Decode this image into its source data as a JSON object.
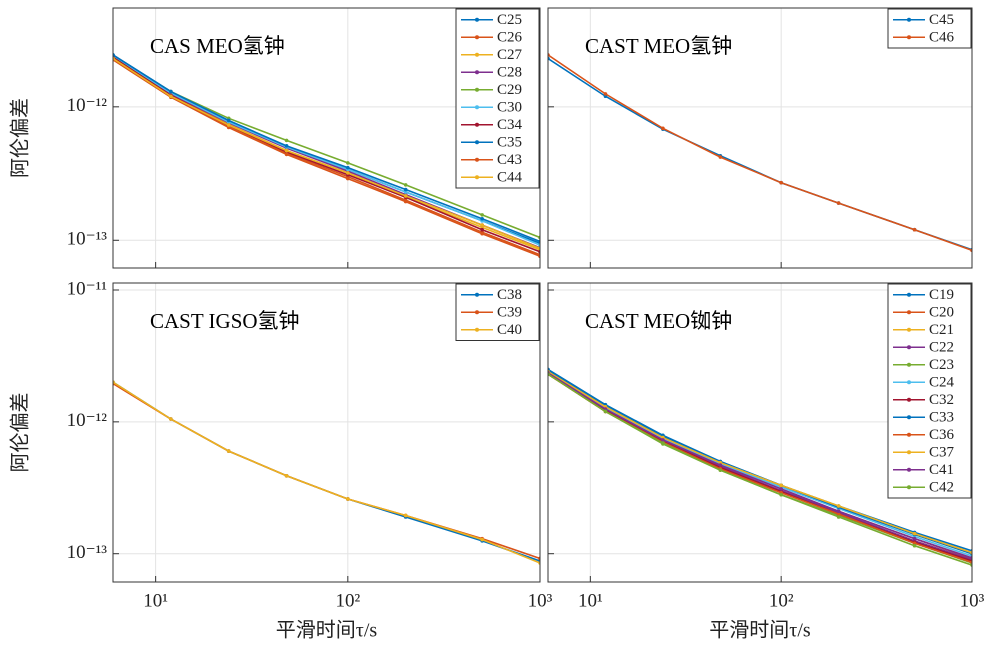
{
  "chart_data": [
    {
      "type": "line",
      "title": "CAS MEO氢钟",
      "ylabel": "阿伦偏差",
      "log_x": true,
      "log_y": true,
      "grid": true,
      "legend": "upper right",
      "xlim": [
        6,
        1000
      ],
      "ylim": [
        6.2e-14,
        5.5e-12
      ],
      "xticks": [
        10,
        100,
        1000
      ],
      "yticks": [
        {
          "value": 1e-12,
          "label": "10⁻¹²"
        },
        {
          "value": 1e-13,
          "label": "10⁻¹³"
        }
      ],
      "x": [
        6,
        12,
        24,
        48,
        100,
        200,
        500,
        1000
      ],
      "series": [
        {
          "name": "C25",
          "color": "#0072BD",
          "values": [
            2.45e-12,
            1.3e-12,
            7.8e-13,
            5e-13,
            3.4e-13,
            2.3e-13,
            1.4e-13,
            9.5e-14
          ]
        },
        {
          "name": "C26",
          "color": "#D95319",
          "values": [
            2.3e-12,
            1.2e-12,
            7.2e-13,
            4.5e-13,
            3e-13,
            2e-13,
            1.15e-13,
            7.8e-14
          ]
        },
        {
          "name": "C27",
          "color": "#EDB120",
          "values": [
            2.35e-12,
            1.22e-12,
            7.4e-13,
            4.7e-13,
            3.2e-13,
            2.1e-13,
            1.25e-13,
            8.5e-14
          ]
        },
        {
          "name": "C28",
          "color": "#7E2F8E",
          "values": [
            2.4e-12,
            1.25e-12,
            7.6e-13,
            4.9e-13,
            3.3e-13,
            2.2e-13,
            1.3e-13,
            8.8e-14
          ]
        },
        {
          "name": "C29",
          "color": "#77AC30",
          "values": [
            2.4e-12,
            1.3e-12,
            8.2e-13,
            5.6e-13,
            3.8e-13,
            2.6e-13,
            1.55e-13,
            1.05e-13
          ]
        },
        {
          "name": "C30",
          "color": "#4DBEEE",
          "values": [
            2.4e-12,
            1.27e-12,
            7.7e-13,
            5e-13,
            3.4e-13,
            2.3e-13,
            1.4e-13,
            9.2e-14
          ]
        },
        {
          "name": "C34",
          "color": "#A2142F",
          "values": [
            2.35e-12,
            1.22e-12,
            7.3e-13,
            4.6e-13,
            3.1e-13,
            2.1e-13,
            1.2e-13,
            8.2e-14
          ]
        },
        {
          "name": "C35",
          "color": "#0072BD",
          "values": [
            2.45e-12,
            1.3e-12,
            7.9e-13,
            5.1e-13,
            3.5e-13,
            2.4e-13,
            1.45e-13,
            9.8e-14
          ]
        },
        {
          "name": "C43",
          "color": "#D95319",
          "values": [
            2.25e-12,
            1.18e-12,
            7e-13,
            4.4e-13,
            2.9e-13,
            1.95e-13,
            1.12e-13,
            7.6e-14
          ]
        },
        {
          "name": "C44",
          "color": "#EDB120",
          "values": [
            2.3e-12,
            1.2e-12,
            7.3e-13,
            4.7e-13,
            3.2e-13,
            2.15e-13,
            1.3e-13,
            8.7e-14
          ]
        }
      ]
    },
    {
      "type": "line",
      "title": "CAST MEO氢钟",
      "log_x": true,
      "log_y": true,
      "grid": true,
      "legend": "upper right",
      "xlim": [
        6,
        1000
      ],
      "ylim": [
        6.2e-14,
        5.5e-12
      ],
      "xticks": [
        10,
        100,
        1000
      ],
      "yticks": [
        1e-12,
        1e-13
      ],
      "x": [
        6,
        12,
        24,
        48,
        100,
        200,
        500,
        1000
      ],
      "series": [
        {
          "name": "C45",
          "color": "#0072BD",
          "values": [
            2.3e-12,
            1.2e-12,
            6.8e-13,
            4.3e-13,
            2.7e-13,
            1.9e-13,
            1.2e-13,
            8.5e-14
          ]
        },
        {
          "name": "C46",
          "color": "#D95319",
          "values": [
            2.45e-12,
            1.25e-12,
            6.9e-13,
            4.2e-13,
            2.7e-13,
            1.9e-13,
            1.2e-13,
            8.4e-14
          ]
        }
      ]
    },
    {
      "type": "line",
      "title": "CAST IGSO氢钟",
      "ylabel": "阿伦偏差",
      "xlabel": "平滑时间τ/s",
      "log_x": true,
      "log_y": true,
      "grid": true,
      "legend": "upper right",
      "xlim": [
        6,
        1000
      ],
      "ylim": [
        6.1e-14,
        1.13e-11
      ],
      "xticks": [
        {
          "value": 10,
          "label": "10¹"
        },
        {
          "value": 100,
          "label": "10²"
        },
        {
          "value": 1000,
          "label": "10³"
        }
      ],
      "yticks": [
        {
          "value": 1e-11,
          "label": "10⁻¹¹"
        },
        {
          "value": 1e-12,
          "label": "10⁻¹²"
        },
        {
          "value": 1e-13,
          "label": "10⁻¹³"
        }
      ],
      "x": [
        6,
        12,
        24,
        48,
        100,
        200,
        500,
        1000
      ],
      "series": [
        {
          "name": "C38",
          "color": "#0072BD",
          "values": [
            2e-12,
            1.05e-12,
            6e-13,
            3.9e-13,
            2.6e-13,
            1.9e-13,
            1.25e-13,
            8.8e-14
          ]
        },
        {
          "name": "C39",
          "color": "#D95319",
          "values": [
            1.95e-12,
            1.05e-12,
            6e-13,
            3.9e-13,
            2.6e-13,
            1.95e-13,
            1.3e-13,
            9.2e-14
          ]
        },
        {
          "name": "C40",
          "color": "#EDB120",
          "values": [
            2e-12,
            1.05e-12,
            6e-13,
            3.9e-13,
            2.6e-13,
            1.95e-13,
            1.28e-13,
            8.5e-14
          ]
        }
      ]
    },
    {
      "type": "line",
      "title": "CAST MEO铷钟",
      "xlabel": "平滑时间τ/s",
      "log_x": true,
      "log_y": true,
      "grid": true,
      "legend": "upper right",
      "xlim": [
        6,
        1000
      ],
      "ylim": [
        6.1e-14,
        1.13e-11
      ],
      "xticks": [
        {
          "value": 10,
          "label": "10¹"
        },
        {
          "value": 100,
          "label": "10²"
        },
        {
          "value": 1000,
          "label": "10³"
        }
      ],
      "yticks": [
        1e-11,
        1e-12,
        1e-13
      ],
      "x": [
        6,
        12,
        24,
        48,
        100,
        200,
        500,
        1000
      ],
      "series": [
        {
          "name": "C19",
          "color": "#0072BD",
          "values": [
            2.5e-12,
            1.35e-12,
            7.9e-13,
            5e-13,
            3.3e-13,
            2.3e-13,
            1.45e-13,
            1.05e-13
          ]
        },
        {
          "name": "C20",
          "color": "#D95319",
          "values": [
            2.3e-12,
            1.2e-12,
            7e-13,
            4.5e-13,
            3e-13,
            2.1e-13,
            1.3e-13,
            9.2e-14
          ]
        },
        {
          "name": "C21",
          "color": "#EDB120",
          "values": [
            2.4e-12,
            1.3e-12,
            7.7e-13,
            4.9e-13,
            3.3e-13,
            2.3e-13,
            1.4e-13,
            1e-13
          ]
        },
        {
          "name": "C22",
          "color": "#7E2F8E",
          "values": [
            2.35e-12,
            1.25e-12,
            7.3e-13,
            4.6e-13,
            3e-13,
            2.05e-13,
            1.25e-13,
            9e-14
          ]
        },
        {
          "name": "C23",
          "color": "#77AC30",
          "values": [
            2.3e-12,
            1.2e-12,
            6.8e-13,
            4.3e-13,
            2.8e-13,
            1.95e-13,
            1.2e-13,
            8.5e-14
          ]
        },
        {
          "name": "C24",
          "color": "#4DBEEE",
          "values": [
            2.4e-12,
            1.28e-12,
            7.5e-13,
            4.8e-13,
            3.2e-13,
            2.2e-13,
            1.35e-13,
            9.6e-14
          ]
        },
        {
          "name": "C32",
          "color": "#A2142F",
          "values": [
            2.3e-12,
            1.22e-12,
            7.1e-13,
            4.5e-13,
            2.95e-13,
            2e-13,
            1.22e-13,
            8.8e-14
          ]
        },
        {
          "name": "C33",
          "color": "#0072BD",
          "values": [
            2.45e-12,
            1.32e-12,
            7.8e-13,
            5e-13,
            3.3e-13,
            2.25e-13,
            1.4e-13,
            1e-13
          ]
        },
        {
          "name": "C36",
          "color": "#D95319",
          "values": [
            2.3e-12,
            1.2e-12,
            7e-13,
            4.4e-13,
            2.9e-13,
            2e-13,
            1.2e-13,
            8.6e-14
          ]
        },
        {
          "name": "C37",
          "color": "#EDB120",
          "values": [
            2.4e-12,
            1.3e-12,
            7.6e-13,
            4.9e-13,
            3.3e-13,
            2.3e-13,
            1.42e-13,
            1.02e-13
          ]
        },
        {
          "name": "C41",
          "color": "#7E2F8E",
          "values": [
            2.35e-12,
            1.25e-12,
            7.3e-13,
            4.7e-13,
            3.1e-13,
            2.1e-13,
            1.3e-13,
            9.3e-14
          ]
        },
        {
          "name": "C42",
          "color": "#77AC30",
          "values": [
            2.3e-12,
            1.2e-12,
            6.9e-13,
            4.3e-13,
            2.8e-13,
            1.9e-13,
            1.15e-13,
            8.2e-14
          ]
        }
      ]
    }
  ]
}
